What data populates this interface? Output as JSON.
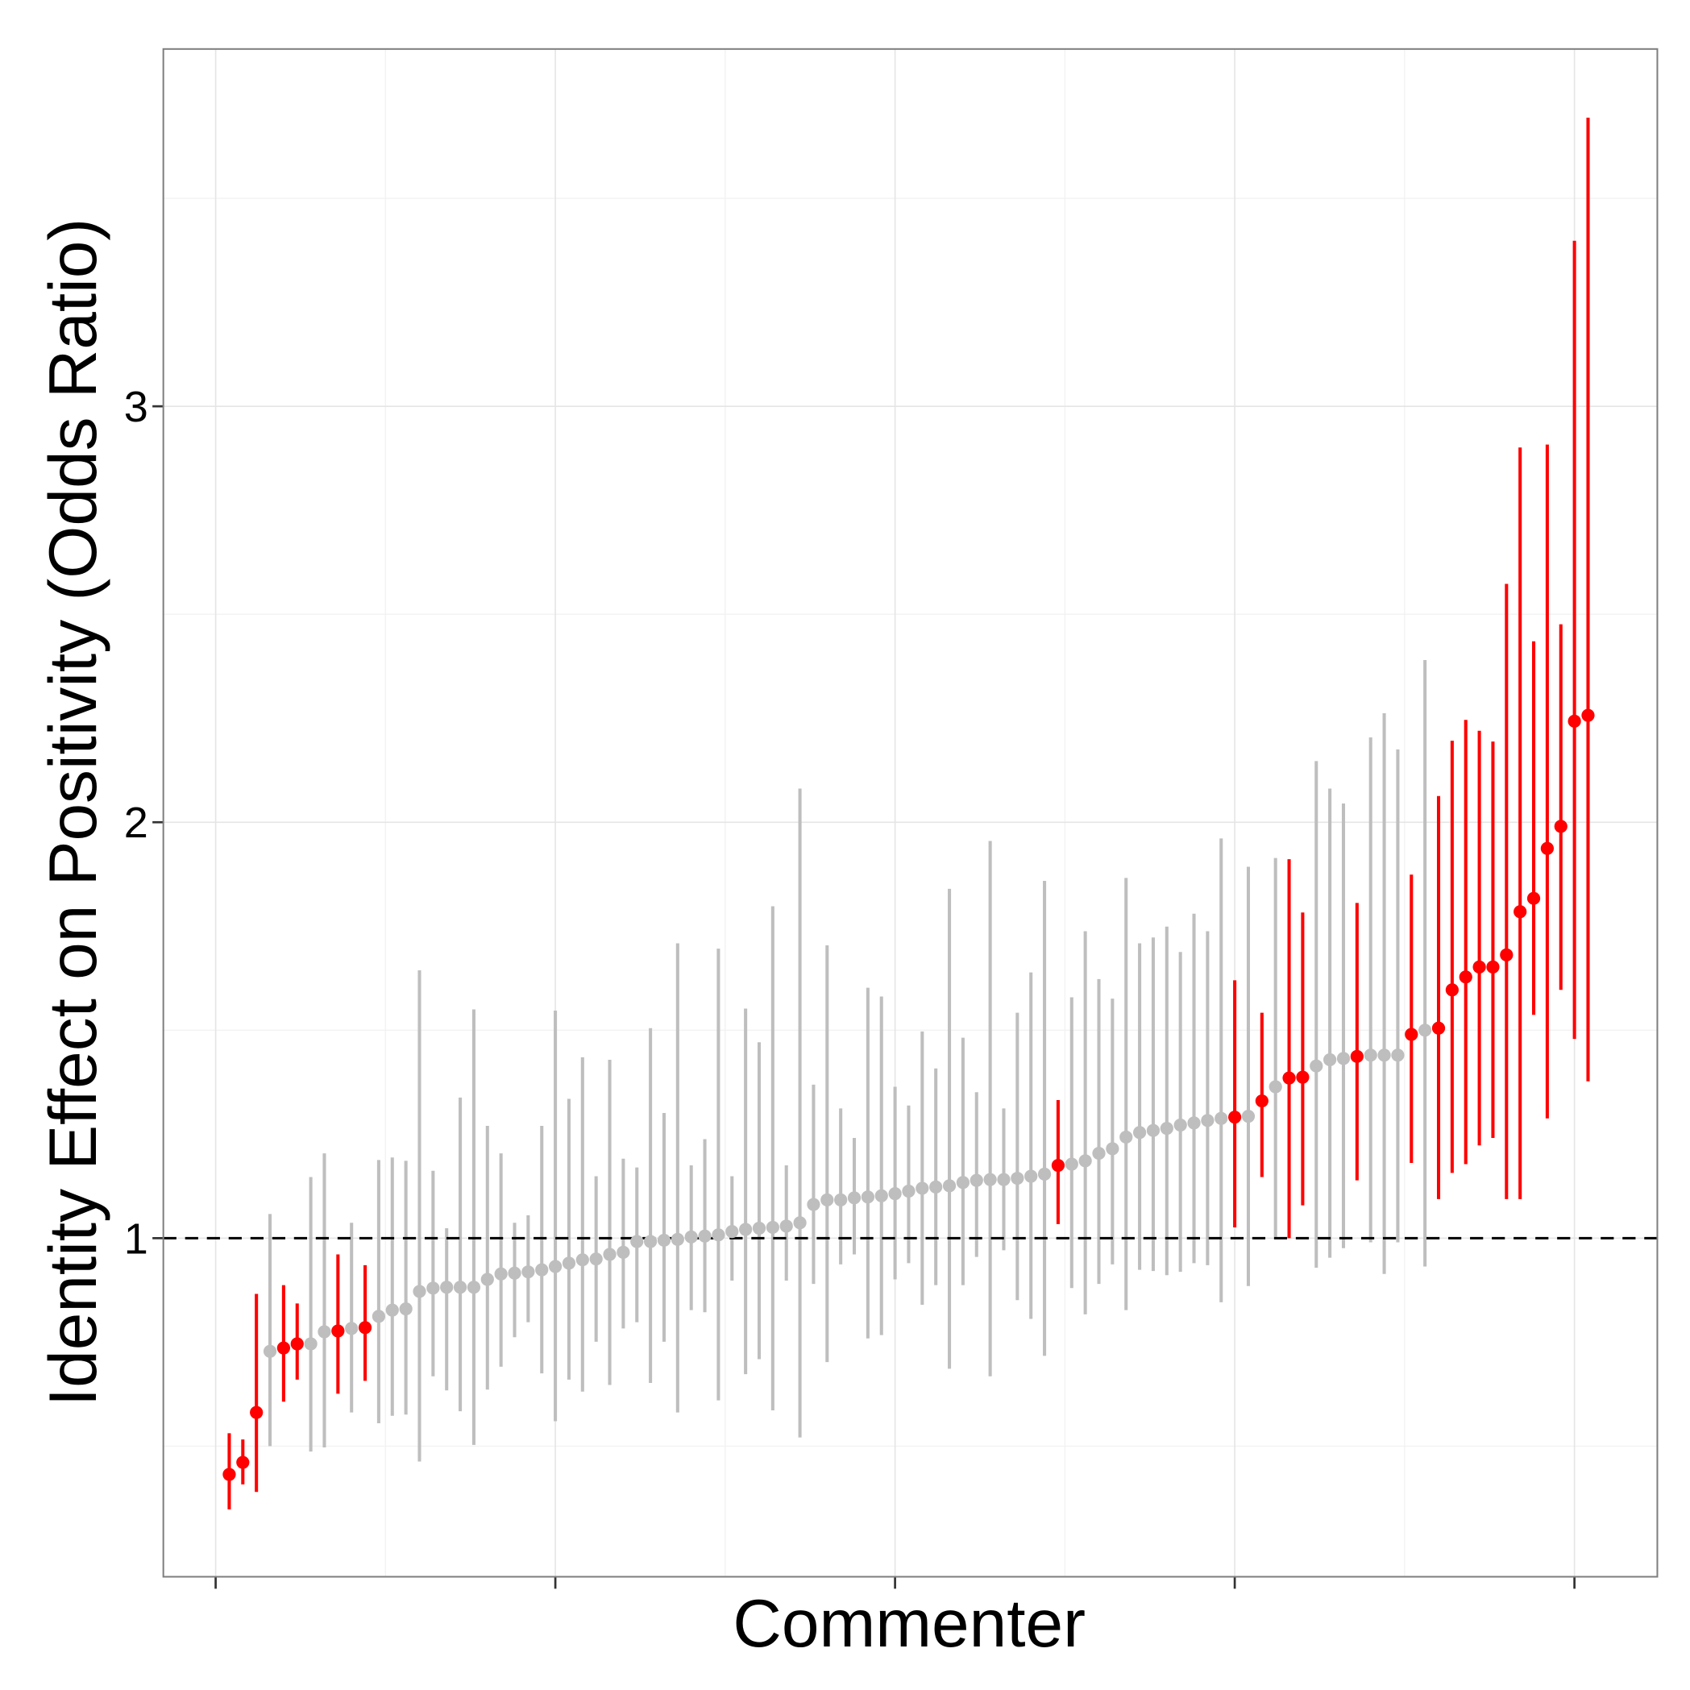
{
  "chart_data": {
    "type": "errorbar",
    "x_label": "Commenter",
    "y_label": "Identity Effect on Positivity (Odds Ratio)",
    "x": [
      1,
      2,
      3,
      4,
      5,
      6,
      7,
      8,
      9,
      10,
      11,
      12,
      13,
      14,
      15,
      16,
      17,
      18,
      19,
      20,
      21,
      22,
      23,
      24,
      25,
      26,
      27,
      28,
      29,
      30,
      31,
      32,
      33,
      34,
      35,
      36,
      37,
      38,
      39,
      40,
      41,
      42,
      43,
      44,
      45,
      46,
      47,
      48,
      49,
      50,
      51,
      52,
      53,
      54,
      55,
      56,
      57,
      58,
      59,
      60,
      61,
      62,
      63,
      64,
      65,
      66,
      67,
      68,
      69,
      70,
      71,
      72,
      73,
      74,
      75,
      76,
      77,
      78,
      79,
      80,
      81,
      82,
      83,
      84,
      85,
      86,
      87,
      88,
      89,
      90,
      91,
      92,
      93,
      94,
      95,
      96,
      97,
      98,
      99,
      100,
      101
    ],
    "values": [
      0.432,
      0.461,
      0.581,
      0.728,
      0.736,
      0.746,
      0.746,
      0.775,
      0.777,
      0.783,
      0.785,
      0.812,
      0.827,
      0.83,
      0.872,
      0.88,
      0.882,
      0.882,
      0.882,
      0.901,
      0.914,
      0.916,
      0.919,
      0.924,
      0.932,
      0.94,
      0.948,
      0.95,
      0.961,
      0.966,
      0.992,
      0.992,
      0.995,
      0.997,
      1.003,
      1.005,
      1.008,
      1.016,
      1.021,
      1.024,
      1.026,
      1.029,
      1.037,
      1.081,
      1.092,
      1.092,
      1.097,
      1.099,
      1.102,
      1.107,
      1.113,
      1.12,
      1.123,
      1.126,
      1.134,
      1.139,
      1.141,
      1.141,
      1.144,
      1.149,
      1.154,
      1.175,
      1.178,
      1.186,
      1.204,
      1.215,
      1.243,
      1.254,
      1.259,
      1.264,
      1.272,
      1.277,
      1.283,
      1.288,
      1.291,
      1.293,
      1.33,
      1.364,
      1.385,
      1.387,
      1.414,
      1.429,
      1.432,
      1.437,
      1.44,
      1.44,
      1.44,
      1.49,
      1.5,
      1.505,
      1.597,
      1.628,
      1.652,
      1.652,
      1.681,
      1.785,
      1.817,
      1.937,
      1.99,
      2.243,
      2.257
    ],
    "lower": [
      0.348,
      0.408,
      0.39,
      0.5,
      0.607,
      0.66,
      0.487,
      0.497,
      0.626,
      0.581,
      0.657,
      0.555,
      0.573,
      0.576,
      0.463,
      0.668,
      0.634,
      0.584,
      0.503,
      0.636,
      0.691,
      0.762,
      0.798,
      0.675,
      0.56,
      0.66,
      0.631,
      0.751,
      0.647,
      0.783,
      0.798,
      0.652,
      0.751,
      0.581,
      0.827,
      0.822,
      0.61,
      0.898,
      0.673,
      0.709,
      0.586,
      0.898,
      0.521,
      0.89,
      0.702,
      0.937,
      0.961,
      0.759,
      0.767,
      0.901,
      0.94,
      0.84,
      0.887,
      0.686,
      0.887,
      0.955,
      0.668,
      0.971,
      0.851,
      0.806,
      0.717,
      1.034,
      0.88,
      0.817,
      0.89,
      0.937,
      0.827,
      0.924,
      0.921,
      0.911,
      0.919,
      0.94,
      0.935,
      0.846,
      1.026,
      0.885,
      1.147,
      1.003,
      1.0,
      1.079,
      0.929,
      0.953,
      0.976,
      1.139,
      0.99,
      0.914,
      0.99,
      1.181,
      0.932,
      1.094,
      1.157,
      1.178,
      1.223,
      1.241,
      1.094,
      1.094,
      1.537,
      1.288,
      1.597,
      1.479,
      1.377
    ],
    "upper": [
      0.531,
      0.516,
      0.866,
      1.058,
      0.887,
      0.843,
      1.147,
      1.204,
      0.961,
      1.037,
      0.935,
      1.188,
      1.194,
      1.186,
      1.644,
      1.162,
      1.024,
      1.338,
      1.55,
      1.27,
      1.204,
      1.037,
      1.055,
      1.27,
      1.547,
      1.335,
      1.435,
      1.149,
      1.429,
      1.191,
      1.17,
      1.505,
      1.301,
      1.709,
      1.175,
      1.238,
      1.696,
      1.149,
      1.552,
      1.471,
      1.798,
      1.175,
      2.081,
      1.369,
      1.704,
      1.312,
      1.241,
      1.602,
      1.581,
      1.364,
      1.319,
      1.497,
      1.408,
      1.84,
      1.482,
      1.351,
      1.955,
      1.312,
      1.542,
      1.639,
      1.859,
      1.332,
      1.579,
      1.738,
      1.623,
      1.576,
      1.866,
      1.709,
      1.723,
      1.749,
      1.688,
      1.78,
      1.738,
      1.961,
      1.62,
      1.893,
      1.542,
      1.914,
      1.911,
      1.783,
      2.147,
      2.081,
      2.045,
      1.806,
      2.204,
      2.262,
      2.175,
      1.874,
      2.39,
      2.063,
      2.196,
      2.246,
      2.22,
      2.194,
      2.573,
      2.901,
      2.435,
      2.908,
      2.476,
      3.398,
      3.694
    ],
    "colors": [
      "#ff0000",
      "#ff0000",
      "#ff0000",
      "#bebebe",
      "#ff0000",
      "#ff0000",
      "#bebebe",
      "#bebebe",
      "#ff0000",
      "#bebebe",
      "#ff0000",
      "#bebebe",
      "#bebebe",
      "#bebebe",
      "#bebebe",
      "#bebebe",
      "#bebebe",
      "#bebebe",
      "#bebebe",
      "#bebebe",
      "#bebebe",
      "#bebebe",
      "#bebebe",
      "#bebebe",
      "#bebebe",
      "#bebebe",
      "#bebebe",
      "#bebebe",
      "#bebebe",
      "#bebebe",
      "#bebebe",
      "#bebebe",
      "#bebebe",
      "#bebebe",
      "#bebebe",
      "#bebebe",
      "#bebebe",
      "#bebebe",
      "#bebebe",
      "#bebebe",
      "#bebebe",
      "#bebebe",
      "#bebebe",
      "#bebebe",
      "#bebebe",
      "#bebebe",
      "#bebebe",
      "#bebebe",
      "#bebebe",
      "#bebebe",
      "#bebebe",
      "#bebebe",
      "#bebebe",
      "#bebebe",
      "#bebebe",
      "#bebebe",
      "#bebebe",
      "#bebebe",
      "#bebebe",
      "#bebebe",
      "#bebebe",
      "#ff0000",
      "#bebebe",
      "#bebebe",
      "#bebebe",
      "#bebebe",
      "#bebebe",
      "#bebebe",
      "#bebebe",
      "#bebebe",
      "#bebebe",
      "#bebebe",
      "#bebebe",
      "#bebebe",
      "#ff0000",
      "#bebebe",
      "#ff0000",
      "#bebebe",
      "#ff0000",
      "#ff0000",
      "#bebebe",
      "#bebebe",
      "#bebebe",
      "#ff0000",
      "#bebebe",
      "#bebebe",
      "#bebebe",
      "#ff0000",
      "#bebebe",
      "#ff0000",
      "#ff0000",
      "#ff0000",
      "#ff0000",
      "#ff0000",
      "#ff0000",
      "#ff0000",
      "#ff0000",
      "#ff0000",
      "#ff0000",
      "#ff0000",
      "#ff0000"
    ],
    "xlim": [
      -3.85,
      106.1
    ],
    "ylim": [
      0.186,
      3.859
    ],
    "xticks": [
      0,
      25,
      50,
      75,
      100
    ],
    "yticks": [
      1,
      2,
      3
    ],
    "xminor": [
      12.5,
      37.5,
      62.5,
      87.5
    ],
    "yminor": [
      0.5,
      1.5,
      2.5,
      3.5
    ],
    "reference_line": 1,
    "grid": true
  }
}
